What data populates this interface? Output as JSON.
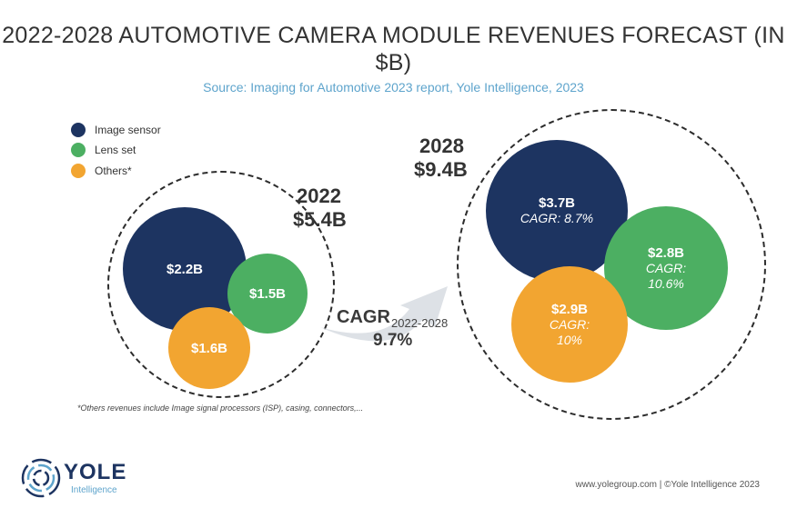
{
  "chart_data": {
    "type": "bubble",
    "title": "2022-2028 AUTOMOTIVE CAMERA MODULE REVENUES FORECAST (IN $B)",
    "subtitle": "Source: Imaging for Automotive 2023 report, Yole Intelligence, 2023",
    "legend": [
      {
        "name": "Image sensor",
        "color": "#1d3461"
      },
      {
        "name": "Lens set",
        "color": "#4caf62"
      },
      {
        "name": "Others*",
        "color": "#f2a531"
      }
    ],
    "legend_position": "top-left",
    "groups": [
      {
        "year": "2022",
        "total": "$5.4B",
        "total_value": 5.4,
        "bubbles": [
          {
            "segment": "Image sensor",
            "label": "$2.2B",
            "value": 2.2
          },
          {
            "segment": "Lens set",
            "label": "$1.5B",
            "value": 1.5
          },
          {
            "segment": "Others*",
            "label": "$1.6B",
            "value": 1.6
          }
        ]
      },
      {
        "year": "2028",
        "total": "$9.4B",
        "total_value": 9.4,
        "bubbles": [
          {
            "segment": "Image sensor",
            "label": "$3.7B",
            "value": 3.7,
            "cagr": "CAGR: 8.7%"
          },
          {
            "segment": "Lens set",
            "label": "$2.8B",
            "value": 2.8,
            "cagr_l1": "CAGR:",
            "cagr_l2": "10.6%"
          },
          {
            "segment": "Others*",
            "label": "$2.9B",
            "value": 2.9,
            "cagr_l1": "CAGR:",
            "cagr_l2": "10%"
          }
        ]
      }
    ],
    "arrow": {
      "label": "CAGR",
      "period": "2022-2028",
      "value": "9.7%"
    },
    "footnote": "*Others revenues include Image signal processors (ISP), casing, connectors,..."
  },
  "footer": {
    "logo_text": "YOLE",
    "logo_sub": "Intelligence",
    "copyright": "www.yolegroup.com | ©Yole Intelligence 2023"
  }
}
